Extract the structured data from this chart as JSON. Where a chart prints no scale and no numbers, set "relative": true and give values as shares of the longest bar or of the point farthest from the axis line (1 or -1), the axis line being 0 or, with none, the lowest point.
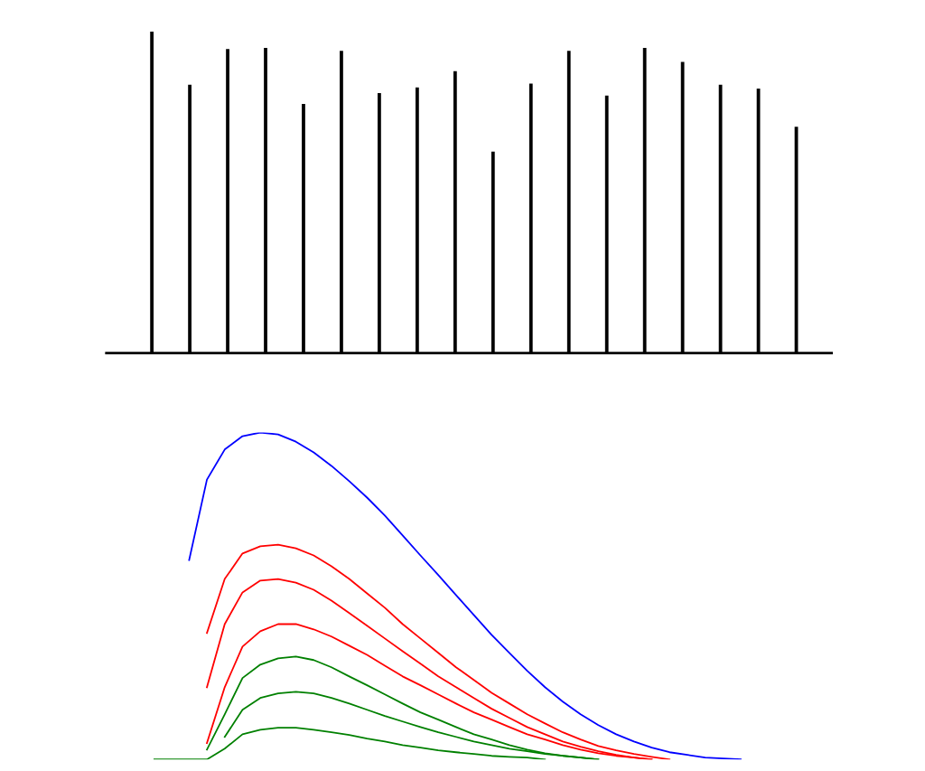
{
  "chart_data": [
    {
      "type": "bar",
      "relative": true,
      "categories": [
        null,
        null,
        null,
        null,
        null,
        null,
        null,
        null,
        null,
        null,
        null,
        null,
        null,
        null,
        null,
        null,
        null,
        null
      ],
      "series": [
        {
          "color": "#000000",
          "values": [
            1.0,
            0.835,
            0.946,
            0.949,
            0.775,
            0.94,
            0.809,
            0.826,
            0.877,
            0.627,
            0.838,
            0.94,
            0.801,
            0.949,
            0.906,
            0.835,
            0.823,
            0.704
          ]
        }
      ]
    },
    {
      "type": "line",
      "relative": true,
      "categories": [
        null,
        null,
        null,
        null,
        null,
        null,
        null,
        null,
        null,
        null,
        null,
        null,
        null,
        null,
        null,
        null,
        null,
        null,
        null,
        null,
        null,
        null,
        null,
        null,
        null,
        null,
        null,
        null,
        null,
        null,
        null,
        null,
        null,
        null,
        null
      ],
      "series": [
        {
          "color": "#008000",
          "values": [
            0,
            0,
            0,
            0,
            0.033,
            0.077,
            0.091,
            0.097,
            0.097,
            0.091,
            0.083,
            0.075,
            0.064,
            0.055,
            0.044,
            0.036,
            0.028,
            0.022,
            0.017,
            0.011,
            0.008,
            0.006,
            0,
            null,
            null,
            null,
            null,
            null,
            null,
            null,
            null,
            null,
            null,
            null,
            null
          ]
        },
        {
          "color": "#008000",
          "values": [
            null,
            null,
            null,
            null,
            0.069,
            0.152,
            0.188,
            0.202,
            0.207,
            0.202,
            0.188,
            0.171,
            0.152,
            0.133,
            0.116,
            0.099,
            0.083,
            0.069,
            0.055,
            0.044,
            0.033,
            0.025,
            0.017,
            0.011,
            0.006,
            0,
            null,
            null,
            null,
            null,
            null,
            null,
            null,
            null,
            null
          ]
        },
        {
          "color": "#008000",
          "values": [
            null,
            null,
            null,
            0.03,
            0.138,
            0.249,
            0.29,
            0.309,
            0.315,
            0.304,
            0.282,
            0.254,
            0.227,
            0.199,
            0.171,
            0.144,
            0.122,
            0.099,
            0.077,
            0.061,
            0.044,
            0.03,
            0.019,
            0.011,
            0.006,
            0,
            null,
            null,
            null,
            null,
            null,
            null,
            null,
            null,
            null
          ]
        },
        {
          "color": "#ff0000",
          "values": [
            null,
            null,
            null,
            0.05,
            0.221,
            0.345,
            0.392,
            0.414,
            0.414,
            0.398,
            0.376,
            0.348,
            0.32,
            0.287,
            0.254,
            0.227,
            0.199,
            0.171,
            0.144,
            0.122,
            0.099,
            0.077,
            0.061,
            0.044,
            0.03,
            0.019,
            0.011,
            0.006,
            0,
            null,
            null,
            null,
            null,
            null,
            null
          ]
        },
        {
          "color": "#ff0000",
          "values": [
            null,
            null,
            null,
            0.221,
            0.414,
            0.511,
            0.547,
            0.552,
            0.541,
            0.519,
            0.486,
            0.448,
            0.409,
            0.37,
            0.331,
            0.293,
            0.254,
            0.221,
            0.188,
            0.155,
            0.127,
            0.099,
            0.077,
            0.055,
            0.039,
            0.025,
            0.014,
            0.006,
            0,
            null,
            null,
            null,
            null,
            null,
            null
          ]
        },
        {
          "color": "#ff0000",
          "values": [
            null,
            null,
            null,
            0.387,
            0.552,
            0.63,
            0.652,
            0.657,
            0.646,
            0.624,
            0.591,
            0.552,
            0.508,
            0.464,
            0.414,
            0.37,
            0.326,
            0.282,
            0.243,
            0.204,
            0.171,
            0.138,
            0.11,
            0.083,
            0.061,
            0.041,
            0.028,
            0.017,
            0.008,
            0,
            null,
            null,
            null,
            null,
            null
          ]
        },
        {
          "color": "#0000ff",
          "values": [
            null,
            null,
            0.61,
            0.856,
            0.948,
            0.989,
            1.0,
            0.994,
            0.972,
            0.939,
            0.898,
            0.851,
            0.801,
            0.746,
            0.685,
            0.624,
            0.564,
            0.503,
            0.442,
            0.381,
            0.326,
            0.271,
            0.221,
            0.177,
            0.138,
            0.105,
            0.077,
            0.055,
            0.036,
            0.022,
            0.014,
            0.006,
            0.003,
            0,
            null
          ]
        }
      ]
    }
  ]
}
